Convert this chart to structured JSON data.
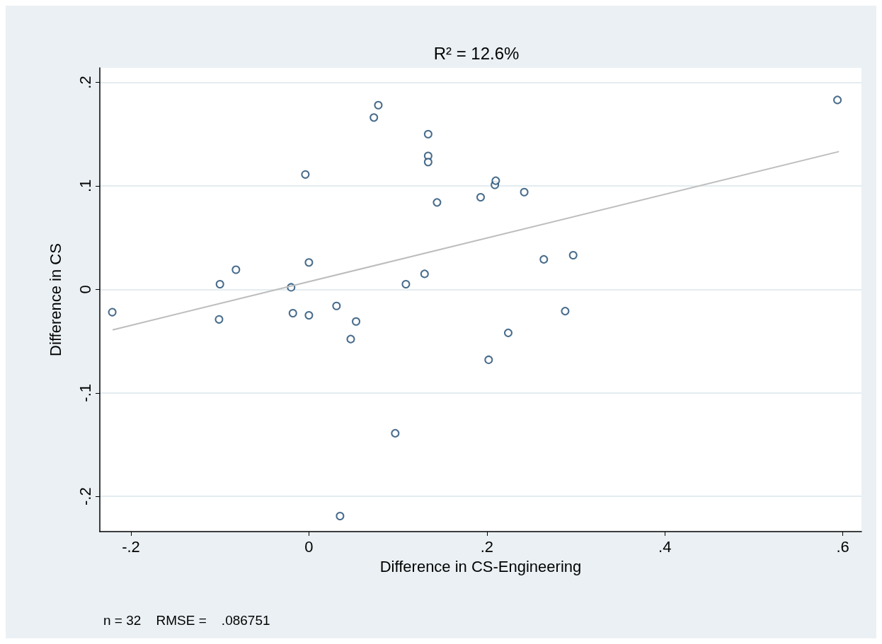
{
  "chart_data": {
    "type": "scatter",
    "title": "R² = 12.6%",
    "xlabel": "Difference in CS-Engineering",
    "ylabel": "Difference in CS",
    "annotations": [
      "n = 32    RMSE =    .086751"
    ],
    "xlim": [
      -0.235,
      0.621
    ],
    "ylim": [
      -0.234,
      0.214
    ],
    "xticks": [
      {
        "value": -0.2,
        "label": "-.2"
      },
      0,
      {
        "value": 0.2,
        "label": ".2"
      },
      {
        "value": 0.4,
        "label": ".4"
      },
      {
        "value": 0.6,
        "label": ".6"
      }
    ],
    "yticks": [
      {
        "value": -0.2,
        "label": "-.2"
      },
      {
        "value": -0.1,
        "label": "-.1"
      },
      0,
      {
        "value": 0.1,
        "label": ".1"
      },
      {
        "value": 0.2,
        "label": ".2"
      }
    ],
    "grid": "y",
    "series": [
      {
        "marker": "circle",
        "color": "#1a476f",
        "x": [
          -0.221,
          -0.1,
          -0.101,
          -0.082,
          -0.02,
          -0.018,
          -0.004,
          0,
          0,
          0.031,
          0.047,
          0.053,
          0.035,
          0.073,
          0.078,
          0.097,
          0.109,
          0.13,
          0.134,
          0.134,
          0.134,
          0.144,
          0.193,
          0.209,
          0.21,
          0.202,
          0.224,
          0.242,
          0.264,
          0.288,
          0.297,
          0.594
        ],
        "values": [
          -0.022,
          0.005,
          -0.029,
          0.019,
          0.002,
          -0.023,
          0.111,
          0.026,
          -0.025,
          -0.016,
          -0.048,
          -0.031,
          -0.219,
          0.166,
          0.178,
          -0.139,
          0.005,
          0.015,
          0.15,
          0.129,
          0.123,
          0.084,
          0.089,
          0.101,
          0.105,
          -0.068,
          -0.042,
          0.094,
          0.029,
          -0.021,
          0.033,
          0.183
        ]
      },
      {
        "type": "line",
        "marker": "none",
        "color": "#bdbdbd",
        "x": [
          -0.22,
          0.595
        ],
        "values": [
          -0.039,
          0.133
        ]
      }
    ]
  }
}
